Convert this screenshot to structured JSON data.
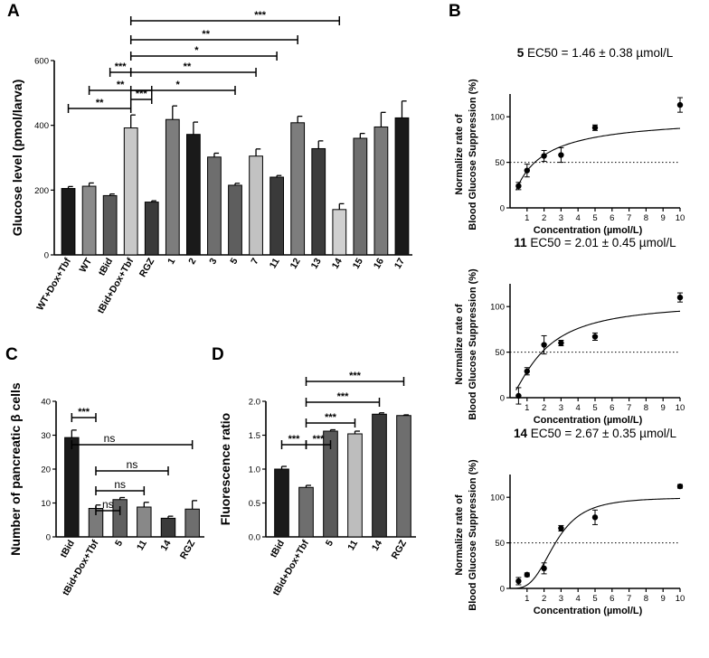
{
  "chart_data": [
    {
      "panel": "A",
      "type": "bar",
      "ylabel": "Glucose level (pmol/larva)",
      "ylim": [
        0,
        600
      ],
      "yticks": [
        0,
        200,
        400,
        600
      ],
      "categories": [
        "WT+Dox+Tbf",
        "WT",
        "tBid",
        "tBid+Dox+Tbf",
        "RGZ",
        "1",
        "2",
        "3",
        "5",
        "7",
        "11",
        "12",
        "13",
        "14",
        "15",
        "16",
        "17"
      ],
      "values": [
        205,
        212,
        183,
        392,
        163,
        418,
        372,
        302,
        215,
        305,
        240,
        408,
        328,
        140,
        360,
        395,
        423
      ],
      "errors": [
        6,
        10,
        5,
        40,
        4,
        42,
        38,
        12,
        6,
        22,
        5,
        20,
        24,
        18,
        15,
        45,
        52
      ],
      "colors": [
        "#1a1a1a",
        "#8a8a8a",
        "#5a5a5a",
        "#c8c8c8",
        "#3a3a3a",
        "#7d7d7d",
        "#1a1a1a",
        "#6e6e6e",
        "#5e5e5e",
        "#c2c2c2",
        "#3a3a3a",
        "#7d7d7d",
        "#3c3c3c",
        "#d0d0d0",
        "#6e6e6e",
        "#7a7a7a",
        "#1a1a1a"
      ],
      "comparisons": [
        {
          "from": 0,
          "to": 3,
          "label": "**"
        },
        {
          "from": 1,
          "to": 4,
          "label": "**"
        },
        {
          "from": 2,
          "to": 3,
          "label": "***"
        },
        {
          "from": 3,
          "to": 4,
          "label": "***"
        },
        {
          "from": 3,
          "to": 8,
          "label": "*"
        },
        {
          "from": 3,
          "to": 9,
          "label": "**"
        },
        {
          "from": 3,
          "to": 10,
          "label": "*"
        },
        {
          "from": 3,
          "to": 11,
          "label": "**"
        },
        {
          "from": 3,
          "to": 13,
          "label": "***"
        }
      ]
    },
    {
      "panel": "B",
      "type": "scatter",
      "charts": [
        {
          "compound": "5",
          "ec_text": " EC50 = 1.46 ± 0.38 µmol/L",
          "x": [
            0.5,
            1,
            2,
            3,
            5,
            10
          ],
          "y": [
            24,
            41,
            57,
            58,
            88,
            113
          ],
          "err": [
            4,
            7,
            6,
            8,
            3,
            8
          ],
          "fit": {
            "top": 100,
            "ec50": 1.46,
            "hill": 1
          }
        },
        {
          "compound": "11",
          "ec_text": " EC50 = 2.01 ± 0.45 µmol/L",
          "x": [
            0.5,
            1,
            2,
            3,
            5,
            10
          ],
          "y": [
            2,
            29,
            58,
            60,
            67,
            110
          ],
          "err": [
            9,
            4,
            10,
            3,
            4,
            5
          ],
          "fit": {
            "top": 105,
            "ec50": 2.01,
            "hill": 1.4
          }
        },
        {
          "compound": "14",
          "ec_text": " EC50 = 2.67 ± 0.35 µmol/L",
          "x": [
            0.5,
            1,
            2,
            3,
            5,
            10
          ],
          "y": [
            8,
            15,
            22,
            66,
            78,
            112
          ],
          "err": [
            4,
            2,
            6,
            3,
            8,
            2
          ],
          "fit": {
            "top": 100,
            "ec50": 2.67,
            "hill": 3.3
          }
        }
      ],
      "ylabel_line1": "Normalize rate of",
      "ylabel_line2": "Blood Glucose Suppression (%)",
      "xlabel": "Concentration (µmol/L)",
      "xlim": [
        0,
        10
      ],
      "ylim": [
        0,
        125
      ],
      "xticks": [
        1,
        2,
        3,
        4,
        5,
        6,
        7,
        8,
        9,
        10
      ],
      "yticks": [
        0,
        50,
        100
      ],
      "reference_line": 50
    },
    {
      "panel": "C",
      "type": "bar",
      "ylabel": "Number of pancreatic β cells",
      "ylim": [
        0,
        40
      ],
      "yticks": [
        0,
        10,
        20,
        30,
        40
      ],
      "categories": [
        "tBid",
        "tBid+Dox+Tbf",
        "5",
        "11",
        "14",
        "RGZ"
      ],
      "values": [
        29.3,
        8.4,
        11,
        8.8,
        5.5,
        8.2
      ],
      "errors": [
        2.2,
        1.0,
        0.6,
        1.4,
        0.6,
        2.5
      ],
      "colors": [
        "#1a1a1a",
        "#7a7a7a",
        "#606060",
        "#888888",
        "#3a3a3a",
        "#6e6e6e"
      ],
      "comparisons": [
        {
          "from": 0,
          "to": 1,
          "label": "***"
        },
        {
          "from": 1,
          "to": 2,
          "label": "ns"
        },
        {
          "from": 1,
          "to": 3,
          "label": "ns"
        },
        {
          "from": 1,
          "to": 4,
          "label": "ns"
        },
        {
          "from": 0,
          "to": 5,
          "label": "ns"
        }
      ]
    },
    {
      "panel": "D",
      "type": "bar",
      "ylabel": "Fluorescence ratio",
      "ylim": [
        0,
        2.0
      ],
      "yticks": [
        0.0,
        0.5,
        1.0,
        1.5,
        2.0
      ],
      "categories": [
        "tBid",
        "tBid+Dox+Tbf",
        "5",
        "11",
        "14",
        "RGZ"
      ],
      "values": [
        1.0,
        0.73,
        1.56,
        1.52,
        1.81,
        1.79
      ],
      "errors": [
        0.04,
        0.03,
        0.02,
        0.04,
        0.02,
        0.01
      ],
      "colors": [
        "#1a1a1a",
        "#6e6e6e",
        "#5a5a5a",
        "#bdbdbd",
        "#3a3a3a",
        "#6e6e6e"
      ],
      "comparisons": [
        {
          "from": 0,
          "to": 1,
          "label": "***"
        },
        {
          "from": 1,
          "to": 2,
          "label": "***"
        },
        {
          "from": 1,
          "to": 3,
          "label": "***"
        },
        {
          "from": 1,
          "to": 4,
          "label": "***"
        },
        {
          "from": 1,
          "to": 5,
          "label": "***"
        }
      ]
    }
  ]
}
